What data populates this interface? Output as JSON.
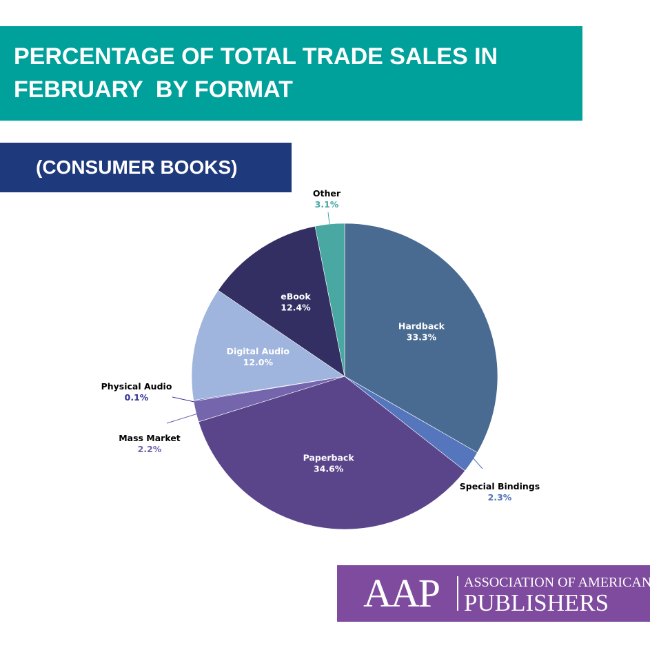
{
  "header": {
    "title_lines": [
      "PERCENTAGE OF TOTAL TRADE SALES IN",
      "FEBRUARY  BY FORMAT"
    ],
    "subtitle": "(CONSUMER BOOKS)"
  },
  "chart_data": {
    "type": "pie",
    "start_angle_deg": 0,
    "direction": "clockwise",
    "slices": [
      {
        "name": "Hardback",
        "value": 33.3,
        "label": "33.3%",
        "color": "#4a6b91",
        "label_color": "#ffffff",
        "label_pos": "inside"
      },
      {
        "name": "Special Bindings",
        "value": 2.3,
        "label": "2.3%",
        "color": "#5576bc",
        "label_color": "#000000",
        "value_color": "#4f6fb6",
        "label_pos": "outside"
      },
      {
        "name": "Paperback",
        "value": 34.6,
        "label": "34.6%",
        "color": "#5a458b",
        "label_color": "#ffffff",
        "label_pos": "inside"
      },
      {
        "name": "Mass Market",
        "value": 2.2,
        "label": "2.2%",
        "color": "#7565ad",
        "label_color": "#000000",
        "value_color": "#6f5fae",
        "label_pos": "outside"
      },
      {
        "name": "Physical Audio",
        "value": 0.1,
        "label": "0.1%",
        "color": "#2d2f8c",
        "label_color": "#000000",
        "value_color": "#2f3192",
        "label_pos": "outside"
      },
      {
        "name": "Digital Audio",
        "value": 12.0,
        "label": "12.0%",
        "color": "#a0b5dd",
        "label_color": "#ffffff",
        "label_pos": "inside"
      },
      {
        "name": "eBook",
        "value": 12.4,
        "label": "12.4%",
        "color": "#332f63",
        "label_color": "#ffffff",
        "label_pos": "inside"
      },
      {
        "name": "Other",
        "value": 3.1,
        "label": "3.1%",
        "color": "#4aa8a2",
        "label_color": "#000000",
        "value_color": "#45a7a0",
        "label_pos": "outside"
      }
    ]
  },
  "logo": {
    "acronym": "AAP",
    "line1": "ASSOCIATION OF AMERICAN",
    "line2": "PUBLISHERS"
  }
}
